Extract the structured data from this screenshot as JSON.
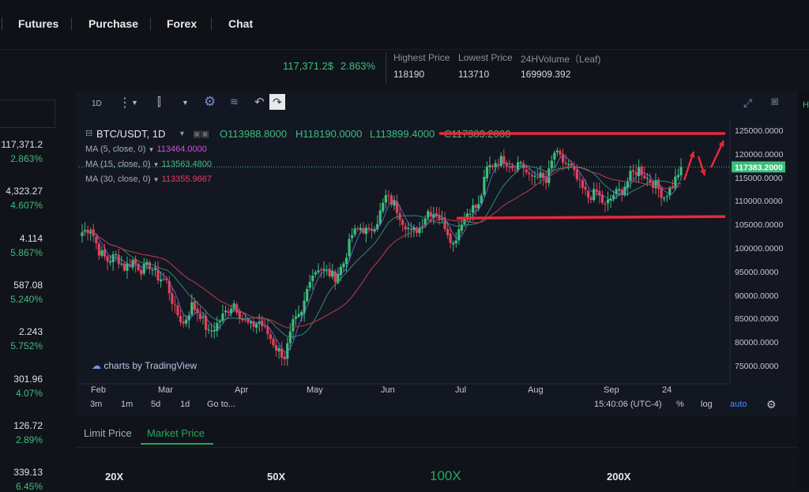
{
  "nav": {
    "items": [
      "Futures",
      "Purchase",
      "Forex",
      "Chat"
    ]
  },
  "ticker": {
    "price": "117,371.2$",
    "change": "2.863%",
    "highest_label": "Highest Price",
    "highest": "118190",
    "lowest_label": "Lowest Price",
    "lowest": "113710",
    "volume_label": "24HVolume（Leaf)",
    "volume": "169909.392"
  },
  "left_list": [
    {
      "value": "117,371.2",
      "pct": "2.863%"
    },
    {
      "value": "4,323.27",
      "pct": "4.607%"
    },
    {
      "value": "4.114",
      "pct": "5.867%"
    },
    {
      "value": "587.08",
      "pct": "5.240%"
    },
    {
      "value": "2.243",
      "pct": "5.752%"
    },
    {
      "value": "301.96",
      "pct": "4.07%"
    },
    {
      "value": "126.72",
      "pct": "2.89%"
    },
    {
      "value": "339.13",
      "pct": "6.45%"
    }
  ],
  "toolbar": {
    "interval": "1D"
  },
  "legend": {
    "symbol": "BTC/USDT, 1D",
    "open": "O113988.8000",
    "high": "H118190.0000",
    "low": "L113899.4000",
    "close": "C117383.2000",
    "ma5_label": "MA (5, close, 0)",
    "ma5_value": "113464.0000",
    "ma15_label": "MA (15, close, 0)",
    "ma15_value": "113563.4800",
    "ma30_label": "MA (30, close, 0)",
    "ma30_value": "113355.9667"
  },
  "watermark": "charts by TradingView",
  "chart_data": {
    "type": "candlestick",
    "x_tick_labels": [
      "Feb",
      "Mar",
      "Apr",
      "May",
      "Jun",
      "Jul",
      "Aug",
      "Sep",
      "24"
    ],
    "y_tick_labels": [
      "125000.0000",
      "120000.0000",
      "115000.0000",
      "110000.0000",
      "105000.0000",
      "100000.0000",
      "95000.0000",
      "90000.0000",
      "85000.0000",
      "80000.0000",
      "75000.0000"
    ],
    "ylim": [
      72000,
      127000
    ],
    "last_price_label": "117383.2000",
    "last_price": 117383.2,
    "resistance": 124500,
    "support": 106500,
    "close_series": [
      103500,
      104500,
      99500,
      97500,
      98500,
      96000,
      97500,
      95500,
      96500,
      94000,
      93000,
      87000,
      84000,
      88000,
      86000,
      82000,
      84000,
      86500,
      88500,
      85000,
      83500,
      84500,
      82000,
      79000,
      77000,
      84000,
      86000,
      94000,
      96000,
      95000,
      94000,
      97000,
      103000,
      104500,
      103500,
      106000,
      111000,
      109500,
      106000,
      103500,
      104500,
      108000,
      107500,
      105000,
      101000,
      106000,
      108500,
      109000,
      117000,
      118500,
      119000,
      117500,
      118500,
      115000,
      116000,
      114000,
      120500,
      118500,
      117000,
      113500,
      111000,
      112000,
      109000,
      111500,
      112500,
      115500,
      117000,
      115000,
      113500,
      111000,
      113500,
      117383
    ]
  },
  "bottom": {
    "ranges": [
      "3m",
      "1m",
      "5d",
      "1d",
      "Go to..."
    ],
    "time": "15:40:06 (UTC-4)",
    "pct": "%",
    "log": "log",
    "auto": "auto"
  },
  "tabs": {
    "limit": "Limit Price",
    "market": "Market Price"
  },
  "leverage": [
    "20X",
    "50X",
    "100X",
    "200X"
  ],
  "colors": {
    "up": "#3dbd7d",
    "down": "#e0435a",
    "accent": "#26a65b"
  }
}
